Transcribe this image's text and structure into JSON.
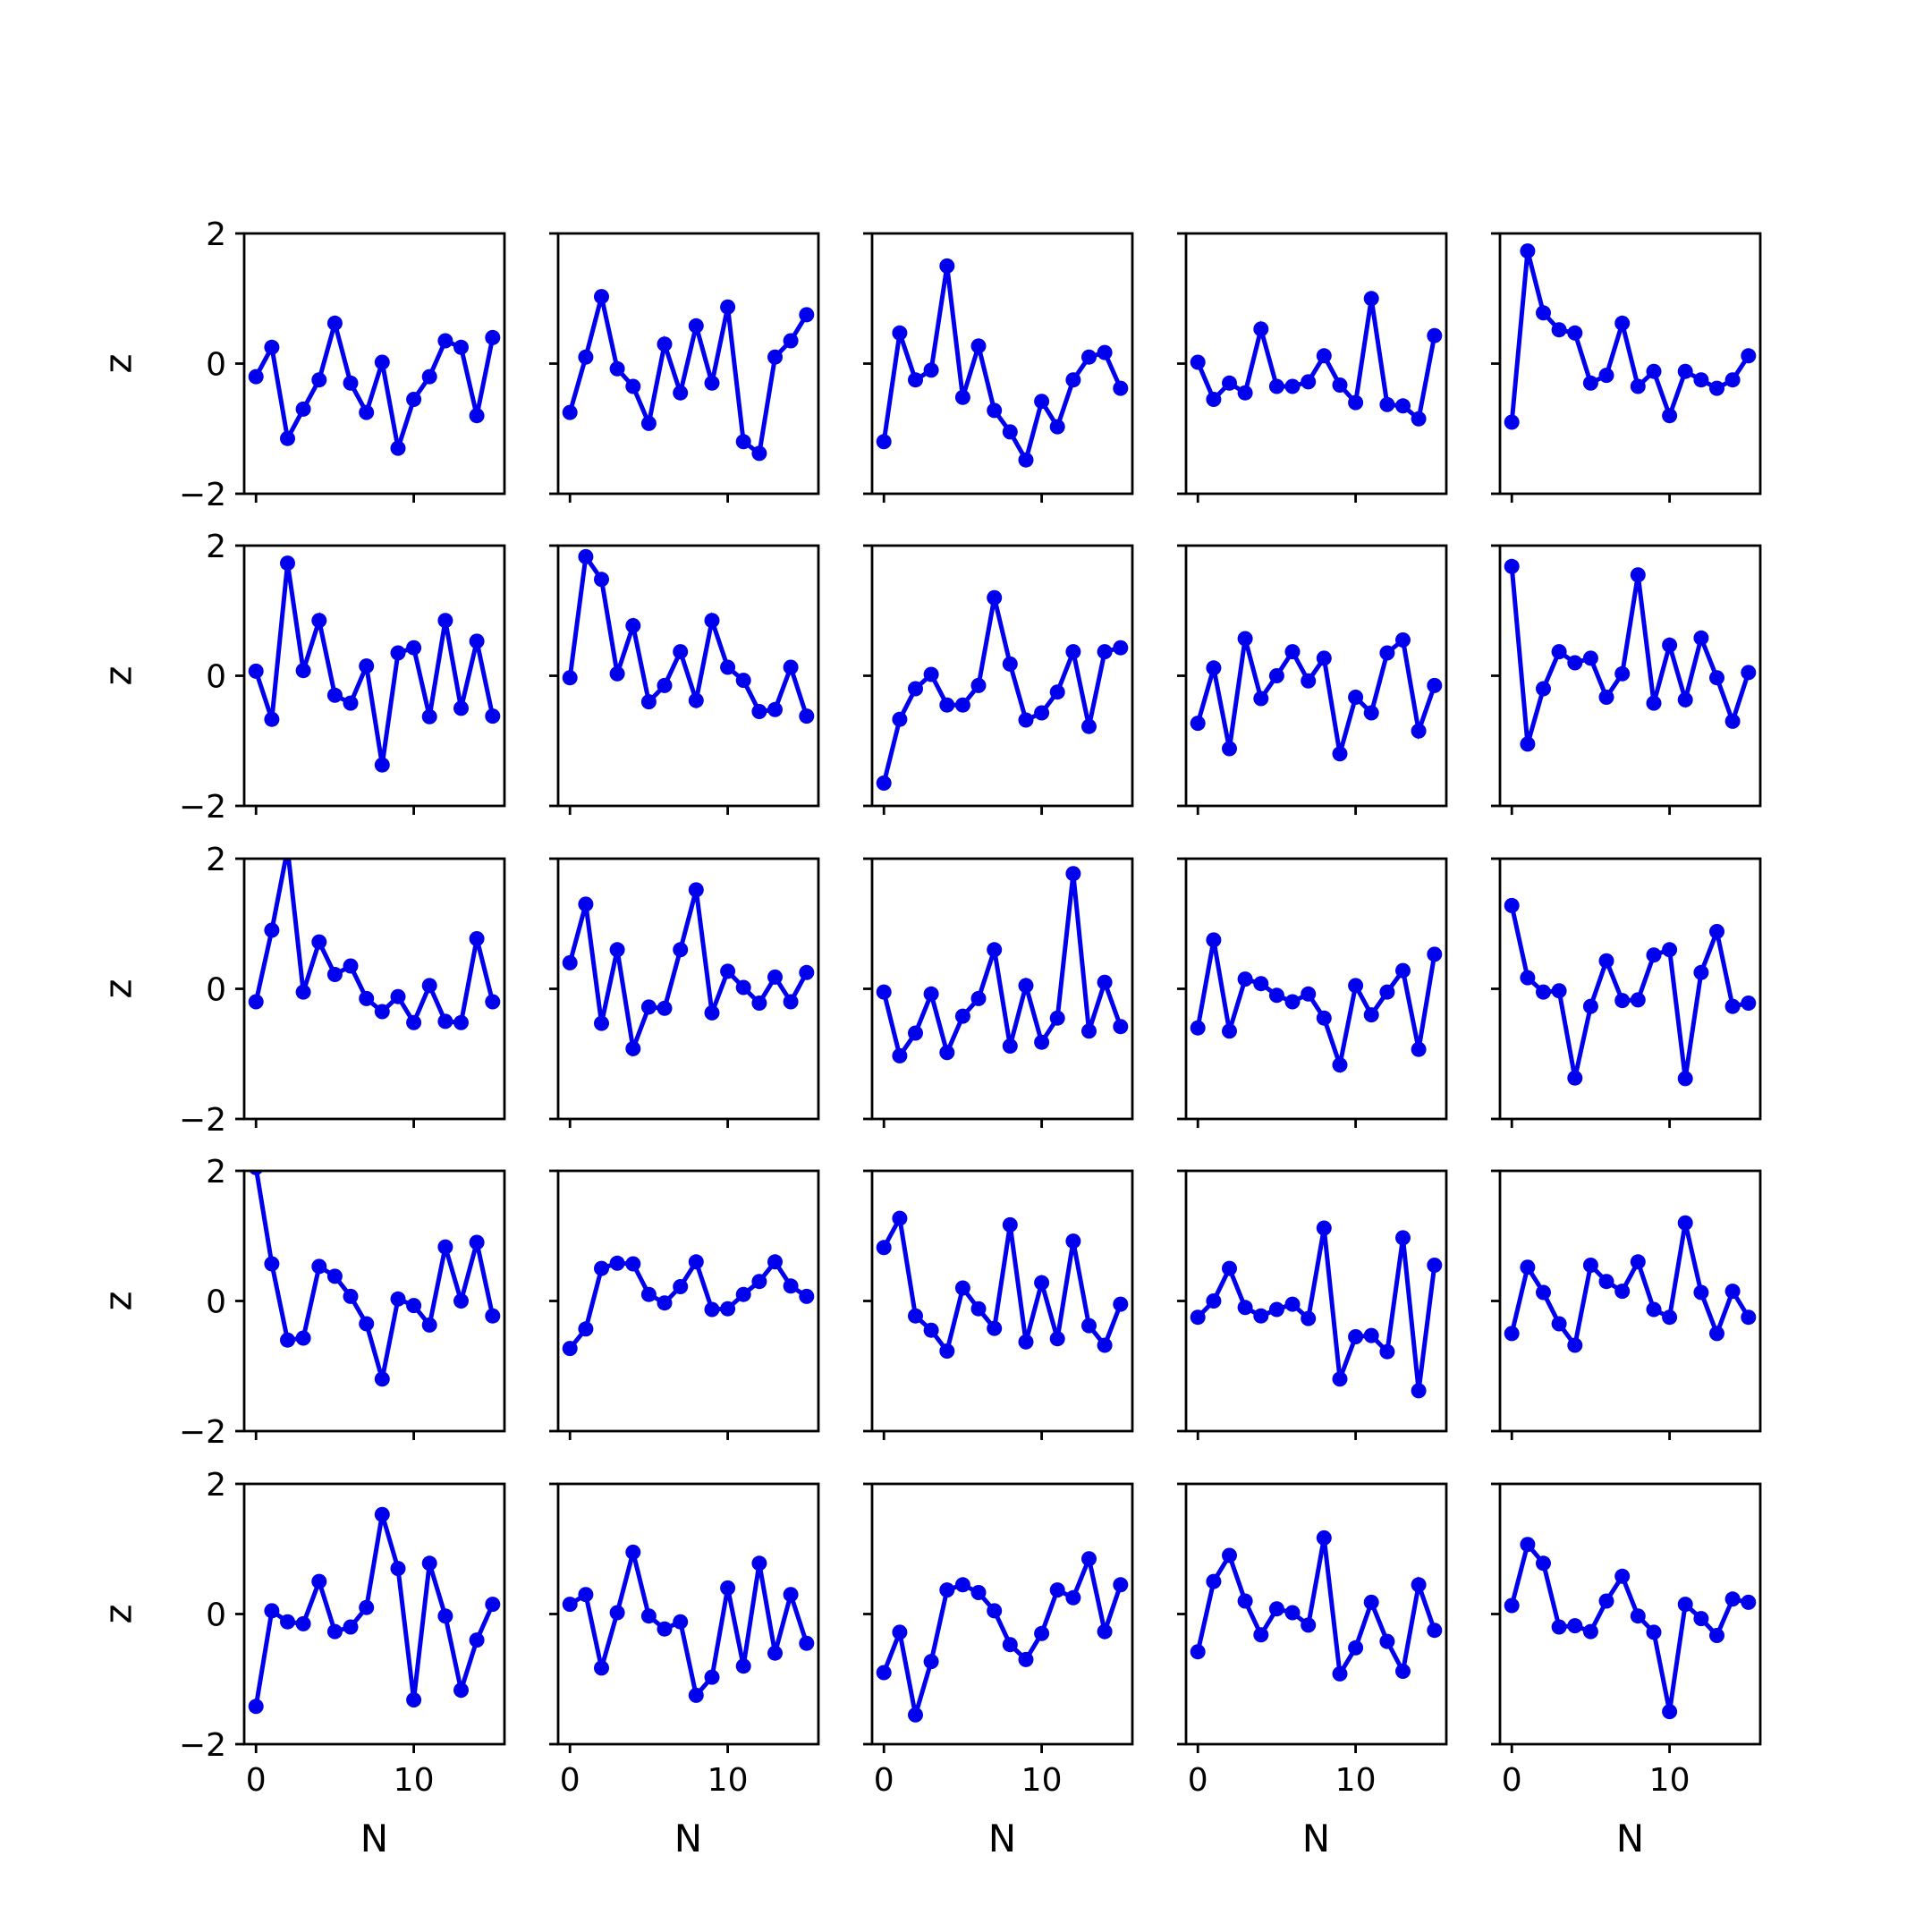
{
  "figure": {
    "rows": 5,
    "cols": 5,
    "line_color": "#0000ee",
    "frame_color": "#000000",
    "background": "#ffffff"
  },
  "chart_data": {
    "type": "line",
    "marker": "circle",
    "xlabel": "N",
    "ylabel": "z",
    "xlim": [
      -0.75,
      15.75
    ],
    "ylim": [
      -2,
      2
    ],
    "xticks": [
      0,
      10
    ],
    "yticks": [
      -2,
      0,
      2
    ],
    "xtick_labels": [
      "0",
      "10"
    ],
    "ytick_labels": [
      "−2",
      "0",
      "2"
    ],
    "x": [
      0,
      1,
      2,
      3,
      4,
      5,
      6,
      7,
      8,
      9,
      10,
      11,
      12,
      13,
      14,
      15
    ],
    "series": [
      {
        "values": [
          -0.2,
          0.25,
          -1.15,
          -0.7,
          -0.25,
          0.62,
          -0.3,
          -0.75,
          0.02,
          -1.3,
          -0.55,
          -0.2,
          0.35,
          0.25,
          -0.8,
          0.4
        ]
      },
      {
        "values": [
          -0.75,
          0.1,
          1.03,
          -0.08,
          -0.35,
          -0.92,
          0.3,
          -0.45,
          0.58,
          -0.3,
          0.87,
          -1.2,
          -1.38,
          0.1,
          0.35,
          0.75
        ]
      },
      {
        "values": [
          -1.2,
          0.47,
          -0.25,
          -0.1,
          1.5,
          -0.52,
          0.27,
          -0.72,
          -1.05,
          -1.48,
          -0.58,
          -0.97,
          -0.25,
          0.1,
          0.17,
          -0.38
        ]
      },
      {
        "values": [
          0.02,
          -0.55,
          -0.3,
          -0.45,
          0.53,
          -0.35,
          -0.35,
          -0.28,
          0.12,
          -0.33,
          -0.6,
          1.0,
          -0.63,
          -0.65,
          -0.85,
          0.43
        ]
      },
      {
        "values": [
          -0.9,
          1.73,
          0.78,
          0.52,
          0.47,
          -0.3,
          -0.18,
          0.62,
          -0.35,
          -0.12,
          -0.8,
          -0.12,
          -0.25,
          -0.38,
          -0.25,
          0.12
        ]
      },
      {
        "values": [
          0.07,
          -0.67,
          1.73,
          0.08,
          0.85,
          -0.3,
          -0.42,
          0.15,
          -1.37,
          0.35,
          0.43,
          -0.63,
          0.85,
          -0.5,
          0.53,
          -0.62
        ]
      },
      {
        "values": [
          -0.03,
          1.83,
          1.48,
          0.03,
          0.77,
          -0.4,
          -0.15,
          0.37,
          -0.38,
          0.85,
          0.13,
          -0.07,
          -0.55,
          -0.52,
          0.13,
          -0.62
        ]
      },
      {
        "values": [
          -1.65,
          -0.67,
          -0.2,
          0.02,
          -0.45,
          -0.45,
          -0.15,
          1.2,
          0.18,
          -0.68,
          -0.57,
          -0.25,
          0.37,
          -0.78,
          0.37,
          0.43
        ]
      },
      {
        "values": [
          -0.73,
          0.12,
          -1.12,
          0.57,
          -0.35,
          0.0,
          0.37,
          -0.08,
          0.27,
          -1.2,
          -0.33,
          -0.57,
          0.35,
          0.55,
          -0.85,
          -0.15
        ]
      },
      {
        "values": [
          1.68,
          -1.05,
          -0.2,
          0.37,
          0.2,
          0.27,
          -0.33,
          0.03,
          1.55,
          -0.42,
          0.47,
          -0.37,
          0.58,
          -0.03,
          -0.7,
          0.05
        ]
      },
      {
        "values": [
          -0.2,
          0.9,
          2.15,
          -0.05,
          0.72,
          0.22,
          0.35,
          -0.15,
          -0.35,
          -0.12,
          -0.52,
          0.05,
          -0.5,
          -0.52,
          0.77,
          -0.2
        ]
      },
      {
        "values": [
          0.4,
          1.3,
          -0.53,
          0.6,
          -0.92,
          -0.28,
          -0.3,
          0.6,
          1.52,
          -0.37,
          0.27,
          0.02,
          -0.22,
          0.18,
          -0.2,
          0.25
        ]
      },
      {
        "values": [
          -0.05,
          -1.03,
          -0.68,
          -0.08,
          -0.98,
          -0.42,
          -0.15,
          0.6,
          -0.88,
          0.05,
          -0.82,
          -0.45,
          1.77,
          -0.65,
          0.1,
          -0.58
        ]
      },
      {
        "values": [
          -0.6,
          0.75,
          -0.65,
          0.15,
          0.08,
          -0.1,
          -0.2,
          -0.08,
          -0.45,
          -1.17,
          0.05,
          -0.4,
          -0.05,
          0.28,
          -0.93,
          0.53
        ]
      },
      {
        "values": [
          1.28,
          0.17,
          -0.05,
          -0.03,
          -1.37,
          -0.27,
          0.43,
          -0.18,
          -0.17,
          0.52,
          0.6,
          -1.38,
          0.25,
          0.88,
          -0.27,
          -0.22
        ]
      },
      {
        "values": [
          2.05,
          0.57,
          -0.6,
          -0.57,
          0.53,
          0.38,
          0.07,
          -0.35,
          -1.2,
          0.03,
          -0.07,
          -0.37,
          0.83,
          0.0,
          0.9,
          -0.23
        ]
      },
      {
        "values": [
          -0.73,
          -0.43,
          0.5,
          0.58,
          0.57,
          0.1,
          -0.03,
          0.22,
          0.6,
          -0.13,
          -0.12,
          0.1,
          0.3,
          0.6,
          0.23,
          0.07
        ]
      },
      {
        "values": [
          0.82,
          1.27,
          -0.23,
          -0.45,
          -0.77,
          0.2,
          -0.12,
          -0.42,
          1.17,
          -0.63,
          0.28,
          -0.58,
          0.92,
          -0.38,
          -0.68,
          -0.05
        ]
      },
      {
        "values": [
          -0.25,
          0.0,
          0.5,
          -0.1,
          -0.23,
          -0.13,
          -0.05,
          -0.27,
          1.12,
          -1.2,
          -0.55,
          -0.53,
          -0.78,
          0.97,
          -1.38,
          0.55
        ]
      },
      {
        "values": [
          -0.5,
          0.52,
          0.13,
          -0.35,
          -0.68,
          0.55,
          0.3,
          0.15,
          0.6,
          -0.13,
          -0.25,
          1.2,
          0.13,
          -0.5,
          0.15,
          -0.25
        ]
      },
      {
        "values": [
          -1.42,
          0.05,
          -0.12,
          -0.15,
          0.5,
          -0.27,
          -0.2,
          0.1,
          1.53,
          0.7,
          -1.32,
          0.78,
          -0.03,
          -1.17,
          -0.4,
          0.15
        ]
      },
      {
        "values": [
          0.15,
          0.3,
          -0.83,
          0.02,
          0.95,
          -0.03,
          -0.23,
          -0.12,
          -1.25,
          -0.97,
          0.4,
          -0.8,
          0.78,
          -0.6,
          0.3,
          -0.45
        ]
      },
      {
        "values": [
          -0.9,
          -0.28,
          -1.55,
          -0.73,
          0.37,
          0.45,
          0.33,
          0.05,
          -0.47,
          -0.7,
          -0.3,
          0.37,
          0.25,
          0.85,
          -0.27,
          0.45
        ]
      },
      {
        "values": [
          -0.58,
          0.5,
          0.9,
          0.2,
          -0.32,
          0.08,
          0.02,
          -0.17,
          1.17,
          -0.92,
          -0.52,
          0.18,
          -0.42,
          -0.88,
          0.45,
          -0.25
        ]
      },
      {
        "values": [
          0.13,
          1.07,
          0.78,
          -0.2,
          -0.18,
          -0.27,
          0.2,
          0.58,
          -0.03,
          -0.28,
          -1.5,
          0.15,
          -0.07,
          -0.33,
          0.23,
          0.18
        ]
      }
    ]
  }
}
